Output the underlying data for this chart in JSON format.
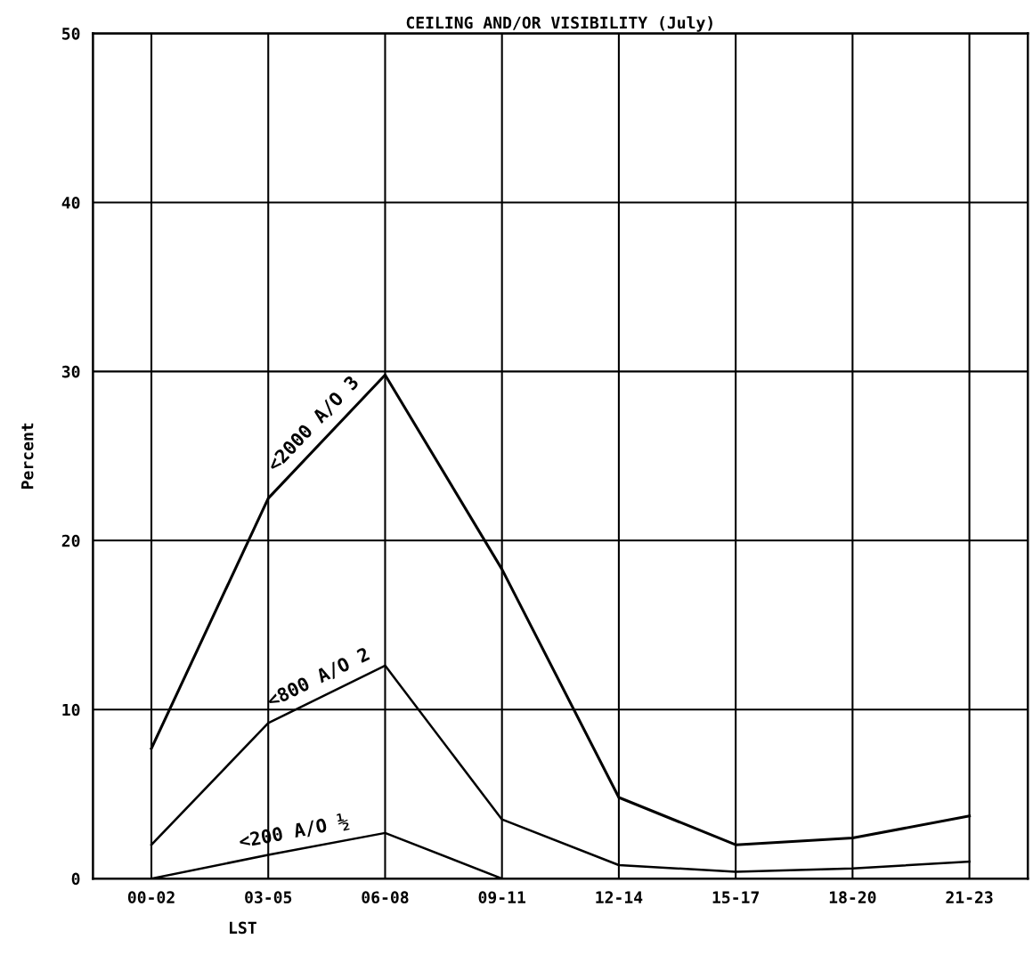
{
  "chart_data": {
    "type": "line",
    "title": "CEILING AND/OR VISIBILITY (July)",
    "xlabel": "LST",
    "ylabel": "Percent",
    "categories": [
      "00-02",
      "03-05",
      "06-08",
      "09-11",
      "12-14",
      "15-17",
      "18-20",
      "21-23"
    ],
    "series": [
      {
        "name": "<2000 A/O 3",
        "color": "#000000",
        "values": [
          7.7,
          22.5,
          29.8,
          18.3,
          4.8,
          2.0,
          2.4,
          3.7
        ]
      },
      {
        "name": "<800 A/O 2",
        "color": "#000000",
        "values": [
          2.0,
          9.2,
          12.6,
          3.5,
          0.8,
          0.4,
          0.6,
          1.0
        ]
      },
      {
        "name": "<200 A/O ½",
        "color": "#000000",
        "values": [
          0,
          1.4,
          2.7,
          0,
          null,
          null,
          null,
          null
        ]
      }
    ],
    "ylim": [
      0,
      50
    ],
    "yticks": [
      0,
      10,
      20,
      30,
      40,
      50
    ],
    "grid": true,
    "legend": false,
    "marker": "none",
    "line_style": "solid"
  }
}
